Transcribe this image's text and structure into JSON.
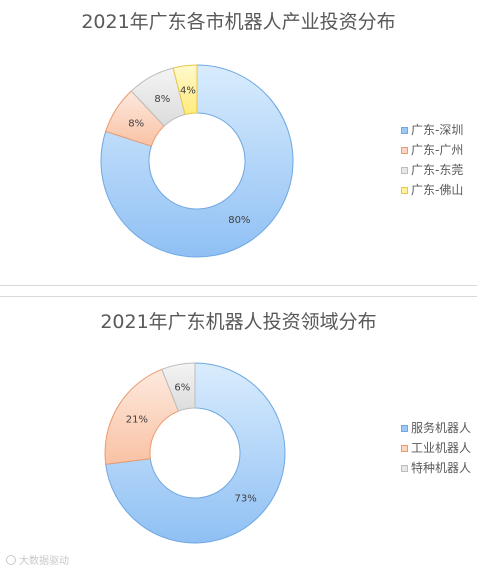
{
  "watermark": "大数据驱动",
  "chart_data": [
    {
      "type": "pie",
      "title": "2021年广东各市机器人产业投资分布",
      "categories": [
        "广东-深圳",
        "广东-广州",
        "广东-东莞",
        "广东-佛山"
      ],
      "values": [
        80,
        8,
        8,
        4
      ],
      "unit": "%",
      "colors": [
        "#9cc8f5",
        "#fcd5c0",
        "#e7e7e7",
        "#fff29a"
      ],
      "legend_position": "right"
    },
    {
      "type": "pie",
      "title": "2021年广东机器人投资领域分布",
      "categories": [
        "服务机器人",
        "工业机器人",
        "特种机器人"
      ],
      "values": [
        73,
        21,
        6
      ],
      "unit": "%",
      "colors": [
        "#9cc8f5",
        "#fcd5c0",
        "#e7e7e7"
      ],
      "legend_position": "right"
    }
  ]
}
